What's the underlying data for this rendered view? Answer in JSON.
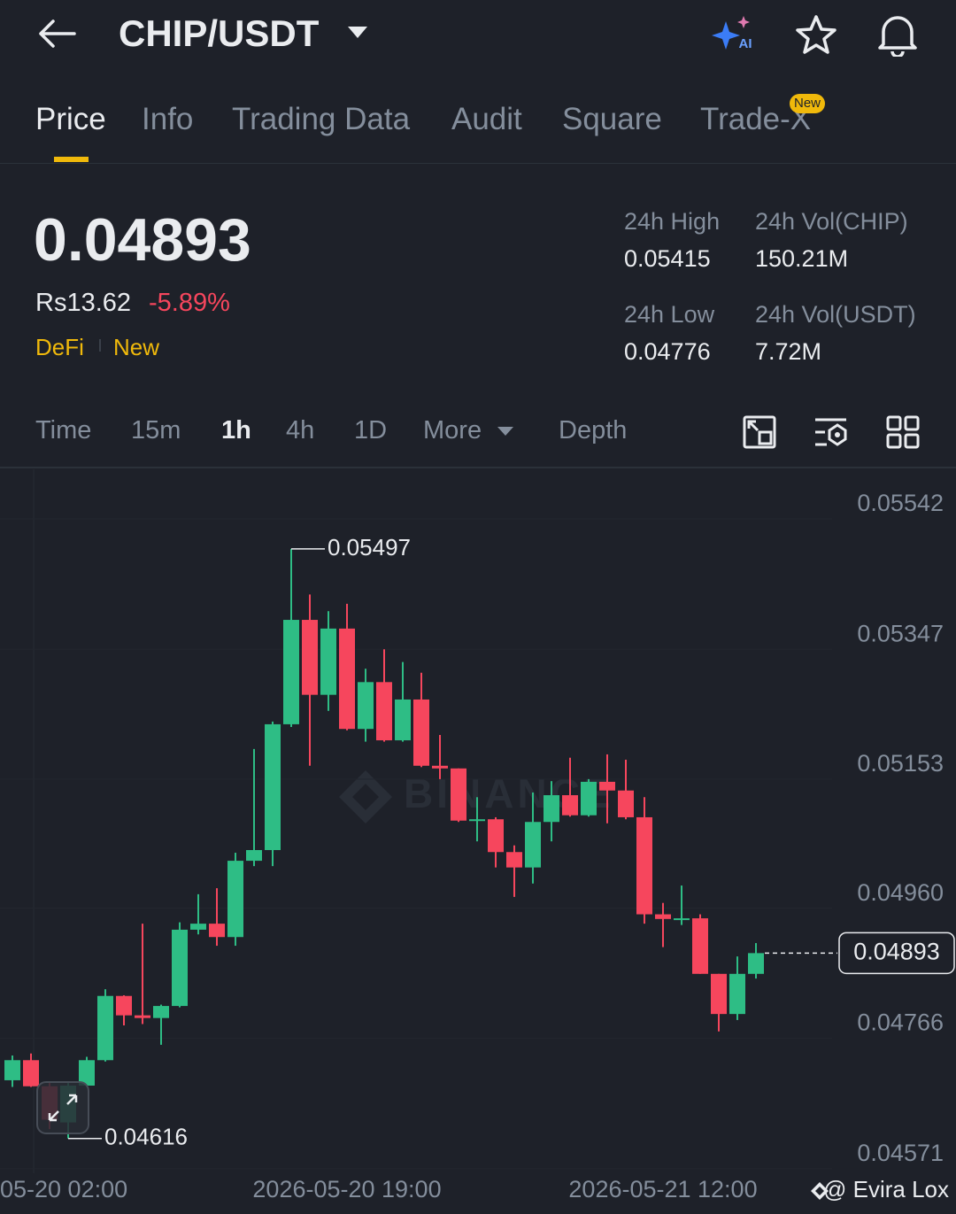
{
  "header": {
    "title": "CHIP/USDT",
    "ai_badge": "AI"
  },
  "tabs": [
    "Price",
    "Info",
    "Trading Data",
    "Audit",
    "Square",
    "Trade-X"
  ],
  "tab_badge": "New",
  "ticker": {
    "price": "0.04893",
    "fiat": "Rs13.62",
    "change": "-5.89%",
    "tags": [
      "DeFi",
      "New"
    ],
    "stats": [
      {
        "label": "24h High",
        "value": "0.05415"
      },
      {
        "label": "24h Vol(CHIP)",
        "value": "150.21M"
      },
      {
        "label": "24h Low",
        "value": "0.04776"
      },
      {
        "label": "24h Vol(USDT)",
        "value": "7.72M"
      }
    ]
  },
  "intervals": [
    "Time",
    "15m",
    "1h",
    "4h",
    "1D",
    "More",
    "Depth"
  ],
  "watermark": "BINANCE",
  "footer": "@ Evira Lox",
  "chart_data": {
    "type": "candlestick",
    "x": [
      "2026-05-20 01:00",
      "2026-05-20 02:00",
      "2026-05-20 03:00",
      "2026-05-20 04:00",
      "2026-05-20 05:00",
      "2026-05-20 06:00",
      "2026-05-20 07:00",
      "2026-05-20 08:00",
      "2026-05-20 09:00",
      "2026-05-20 10:00",
      "2026-05-20 11:00",
      "2026-05-20 12:00",
      "2026-05-20 13:00",
      "2026-05-20 14:00",
      "2026-05-20 15:00",
      "2026-05-20 16:00",
      "2026-05-20 17:00",
      "2026-05-20 18:00",
      "2026-05-20 19:00",
      "2026-05-20 20:00",
      "2026-05-20 21:00",
      "2026-05-20 22:00",
      "2026-05-20 23:00",
      "2026-05-21 00:00",
      "2026-05-21 01:00",
      "2026-05-21 02:00",
      "2026-05-21 03:00",
      "2026-05-21 04:00",
      "2026-05-21 05:00",
      "2026-05-21 06:00",
      "2026-05-21 07:00",
      "2026-05-21 08:00",
      "2026-05-21 09:00",
      "2026-05-21 10:00",
      "2026-05-21 11:00",
      "2026-05-21 12:00",
      "2026-05-21 13:00",
      "2026-05-21 14:00",
      "2026-05-21 15:00",
      "2026-05-21 16:00",
      "2026-05-21 17:00"
    ],
    "open": [
      0.04703,
      0.04733,
      0.04694,
      0.0464,
      0.04695,
      0.04733,
      0.04829,
      0.048,
      0.04796,
      0.04814,
      0.04928,
      0.04937,
      0.04917,
      0.05031,
      0.05047,
      0.05235,
      0.05391,
      0.05279,
      0.05378,
      0.05228,
      0.05298,
      0.05211,
      0.05272,
      0.05173,
      0.05169,
      0.05091,
      0.05093,
      0.05044,
      0.05021,
      0.05089,
      0.05129,
      0.05099,
      0.05149,
      0.05136,
      0.05096,
      0.04951,
      0.04944,
      0.04945,
      0.04862,
      0.04802,
      0.04862
    ],
    "high": [
      0.0474,
      0.04743,
      0.04701,
      0.04701,
      0.04738,
      0.04839,
      0.0483,
      0.04937,
      0.04816,
      0.04939,
      0.04981,
      0.0499,
      0.05043,
      0.05198,
      0.05239,
      0.05497,
      0.05429,
      0.05404,
      0.05415,
      0.05318,
      0.05347,
      0.05328,
      0.05312,
      0.05219,
      0.05169,
      0.05126,
      0.05096,
      0.05054,
      0.05133,
      0.0515,
      0.05185,
      0.05153,
      0.0519,
      0.05182,
      0.05126,
      0.04968,
      0.04994,
      0.04951,
      0.04862,
      0.04888,
      0.04908
    ],
    "low": [
      0.04693,
      0.04693,
      0.0463,
      0.04616,
      0.04693,
      0.04731,
      0.04785,
      0.04787,
      0.04756,
      0.04812,
      0.04921,
      0.04904,
      0.04904,
      0.05023,
      0.05023,
      0.05231,
      0.05173,
      0.05255,
      0.05226,
      0.05209,
      0.05209,
      0.05209,
      0.05171,
      0.05153,
      0.05089,
      0.0506,
      0.05021,
      0.04977,
      0.04997,
      0.0506,
      0.05097,
      0.05097,
      0.05087,
      0.05093,
      0.04937,
      0.04902,
      0.04935,
      0.04862,
      0.04776,
      0.04793,
      0.04855
    ],
    "close": [
      0.04733,
      0.04694,
      0.04644,
      0.04695,
      0.04733,
      0.04829,
      0.048,
      0.04796,
      0.04814,
      0.04928,
      0.04937,
      0.04917,
      0.05031,
      0.05047,
      0.05235,
      0.05391,
      0.05279,
      0.05378,
      0.05228,
      0.05298,
      0.05211,
      0.05272,
      0.05173,
      0.05169,
      0.05091,
      0.05093,
      0.05044,
      0.05021,
      0.05089,
      0.05129,
      0.05099,
      0.05149,
      0.05136,
      0.05096,
      0.04951,
      0.04944,
      0.04945,
      0.04862,
      0.04802,
      0.04862,
      0.04893
    ],
    "up_color": "#2ebd85",
    "down_color": "#f6465d",
    "ylim": [
      0.04564,
      0.05616
    ],
    "yticks": [
      0.05542,
      0.05347,
      0.05153,
      {
        "value": 0.0496,
        "label": "0.04960"
      },
      0.04766,
      0.04571
    ],
    "xticks": [
      {
        "value": "2026-05-20 02:00",
        "label": "05-20 02:00"
      },
      "2026-05-20 19:00",
      "2026-05-21 12:00"
    ],
    "grid": true,
    "high_label": 0.05497,
    "low_label": 0.04616,
    "last_price": 0.04893
  }
}
